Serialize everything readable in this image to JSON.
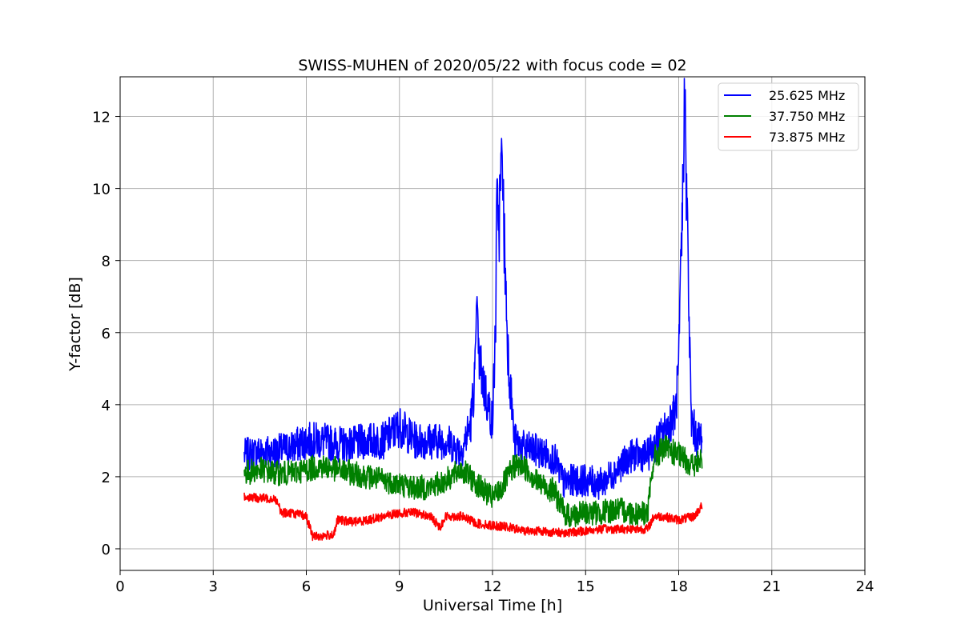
{
  "chart_data": {
    "type": "line",
    "title": "SWISS-MUHEN of 2020/05/22 with focus code = 02",
    "xlabel": "Universal Time [h]",
    "ylabel": "Y-factor [dB]",
    "xlim": [
      0,
      24
    ],
    "ylim": [
      -0.6,
      13.1
    ],
    "xticks": [
      0,
      3,
      6,
      9,
      12,
      15,
      18,
      21,
      24
    ],
    "yticks": [
      0,
      2,
      4,
      6,
      8,
      10,
      12
    ],
    "grid": true,
    "legend_position": "top-right",
    "series": [
      {
        "name": "25.625 MHz",
        "color": "#0000ff",
        "x": [
          4.0,
          4.5,
          5.0,
          5.5,
          6.0,
          6.5,
          7.0,
          7.5,
          8.0,
          8.5,
          9.0,
          9.5,
          10.0,
          10.5,
          11.0,
          11.3,
          11.5,
          11.8,
          12.0,
          12.2,
          12.3,
          12.5,
          12.7,
          13.0,
          13.5,
          14.0,
          14.3,
          14.5,
          15.0,
          15.5,
          16.0,
          16.5,
          17.0,
          17.5,
          17.9,
          18.0,
          18.2,
          18.4,
          18.6,
          18.75
        ],
        "y": [
          2.6,
          2.7,
          2.7,
          2.8,
          3.0,
          3.0,
          2.9,
          2.9,
          3.0,
          3.0,
          3.4,
          3.0,
          3.0,
          3.0,
          2.7,
          3.5,
          5.5,
          4.2,
          3.5,
          9.0,
          10.5,
          5.5,
          3.0,
          2.8,
          2.7,
          2.5,
          1.8,
          1.9,
          1.9,
          1.8,
          2.2,
          2.6,
          2.6,
          3.2,
          3.8,
          5.0,
          12.3,
          3.6,
          3.0,
          3.2
        ],
        "peak_x": [
          11.5,
          12.15,
          12.3,
          18.2
        ],
        "peak_y": [
          7.0,
          10.3,
          11.1,
          12.5
        ]
      },
      {
        "name": "37.750 MHz",
        "color": "#008000",
        "x": [
          4.0,
          4.5,
          5.0,
          5.5,
          6.0,
          6.5,
          7.0,
          7.5,
          8.0,
          8.5,
          9.0,
          9.5,
          10.0,
          10.5,
          11.0,
          11.5,
          12.0,
          12.3,
          12.7,
          13.0,
          13.5,
          14.0,
          14.3,
          14.5,
          15.0,
          15.5,
          16.0,
          16.5,
          17.0,
          17.2,
          17.5,
          18.0,
          18.5,
          18.75
        ],
        "y": [
          2.1,
          2.2,
          2.1,
          2.1,
          2.2,
          2.3,
          2.2,
          2.1,
          2.0,
          1.9,
          1.8,
          1.7,
          1.7,
          1.9,
          2.2,
          1.8,
          1.4,
          1.7,
          2.3,
          2.3,
          1.8,
          1.6,
          1.0,
          0.9,
          1.0,
          1.0,
          1.1,
          1.0,
          1.0,
          2.5,
          2.8,
          2.6,
          2.3,
          2.5
        ]
      },
      {
        "name": "73.875 MHz",
        "color": "#ff0000",
        "x": [
          4.0,
          4.5,
          5.0,
          5.2,
          5.5,
          6.0,
          6.2,
          6.5,
          6.9,
          7.0,
          7.5,
          8.0,
          8.5,
          9.0,
          9.5,
          10.0,
          10.3,
          10.5,
          11.0,
          11.5,
          12.0,
          12.5,
          13.0,
          13.5,
          14.0,
          14.5,
          15.0,
          15.5,
          16.0,
          16.5,
          17.0,
          17.2,
          17.5,
          18.0,
          18.5,
          18.75
        ],
        "y": [
          1.45,
          1.4,
          1.4,
          1.0,
          1.0,
          0.9,
          0.35,
          0.35,
          0.4,
          0.8,
          0.75,
          0.8,
          0.9,
          1.0,
          1.0,
          0.9,
          0.6,
          0.9,
          0.9,
          0.7,
          0.65,
          0.6,
          0.5,
          0.5,
          0.45,
          0.45,
          0.5,
          0.55,
          0.55,
          0.55,
          0.55,
          0.9,
          0.9,
          0.8,
          0.9,
          1.2
        ]
      }
    ]
  }
}
